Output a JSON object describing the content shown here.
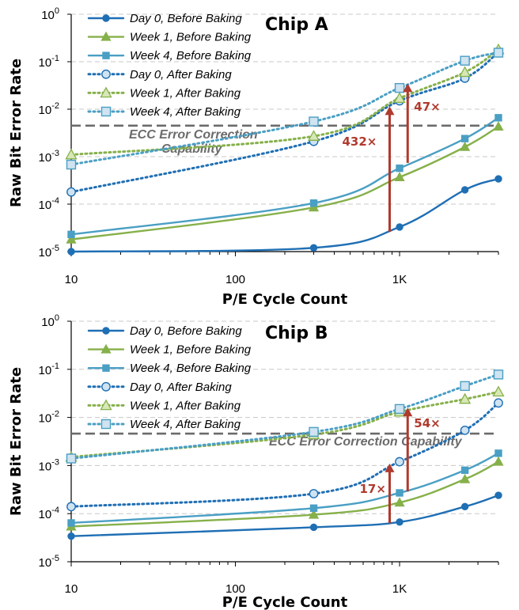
{
  "chart_data": [
    {
      "type": "line",
      "title": "Chip A",
      "xlabel": "P/E Cycle Count",
      "ylabel": "Raw Bit Error Rate",
      "xscale": "log",
      "yscale": "log",
      "xlim": [
        10,
        4000
      ],
      "ylim": [
        1e-05,
        1
      ],
      "x_ticks": [
        {
          "v": 10,
          "label": "10"
        },
        {
          "v": 100,
          "label": "100"
        },
        {
          "v": 1000,
          "label": "1K"
        }
      ],
      "y_ticks": [
        {
          "v": 1e-05,
          "base": "10",
          "exp": "-5"
        },
        {
          "v": 0.0001,
          "base": "10",
          "exp": "-4"
        },
        {
          "v": 0.001,
          "base": "10",
          "exp": "-3"
        },
        {
          "v": 0.01,
          "base": "10",
          "exp": "-2"
        },
        {
          "v": 0.1,
          "base": "10",
          "exp": "-1"
        },
        {
          "v": 1,
          "base": "10",
          "exp": "0"
        }
      ],
      "grid": "horizontal dashed",
      "legend_position": "top-left",
      "series": [
        {
          "name": "Day 0, Before Baking",
          "style": "solid",
          "marker": "circle",
          "color": "#1f6fb4",
          "x": [
            10,
            300,
            1000,
            2500,
            4000
          ],
          "y": [
            1e-05,
            1.2e-05,
            3.3e-05,
            0.0002,
            0.00034
          ]
        },
        {
          "name": "Week 1, Before Baking",
          "style": "solid",
          "marker": "triangle",
          "color": "#86b04a",
          "x": [
            10,
            300,
            1000,
            2500,
            4000
          ],
          "y": [
            1.8e-05,
            8.5e-05,
            0.00037,
            0.0016,
            0.0043
          ]
        },
        {
          "name": "Week 4, Before Baking",
          "style": "solid",
          "marker": "square",
          "color": "#4a9fc4",
          "x": [
            10,
            300,
            1000,
            2500,
            4000
          ],
          "y": [
            2.3e-05,
            0.000105,
            0.00057,
            0.0024,
            0.0066
          ]
        },
        {
          "name": "Day 0, After Baking",
          "style": "dotted",
          "marker": "circle",
          "color": "#1f6fb4",
          "x": [
            10,
            300,
            1000,
            2500,
            4000
          ],
          "y": [
            0.00018,
            0.0021,
            0.015,
            0.045,
            0.16
          ]
        },
        {
          "name": "Week 1, After Baking",
          "style": "dotted",
          "marker": "triangle",
          "color": "#86b04a",
          "x": [
            10,
            300,
            1000,
            2500,
            4000
          ],
          "y": [
            0.0011,
            0.0027,
            0.017,
            0.06,
            0.18
          ]
        },
        {
          "name": "Week 4, After Baking",
          "style": "dotted",
          "marker": "square",
          "color": "#4a9fc4",
          "x": [
            10,
            300,
            1000,
            2500,
            4000
          ],
          "y": [
            0.00068,
            0.0055,
            0.028,
            0.105,
            0.155
          ]
        }
      ],
      "threshold": {
        "y": 0.0045,
        "label_lines": [
          "ECC Error Correction",
          "Capability"
        ],
        "color": "#6b6b6b"
      },
      "arrows": [
        {
          "label": "432×",
          "x": 870,
          "y_from": 2.6e-05,
          "y_to": 0.0115,
          "label_side": "left"
        },
        {
          "label": "47×",
          "x": 1120,
          "y_from": 0.00074,
          "y_to": 0.035,
          "label_side": "right"
        }
      ]
    },
    {
      "type": "line",
      "title": "Chip B",
      "xlabel": "P/E Cycle Count",
      "ylabel": "Raw Bit Error Rate",
      "xscale": "log",
      "yscale": "log",
      "xlim": [
        10,
        4000
      ],
      "ylim": [
        1e-05,
        1
      ],
      "x_ticks": [
        {
          "v": 10,
          "label": "10"
        },
        {
          "v": 100,
          "label": "100"
        },
        {
          "v": 1000,
          "label": "1K"
        }
      ],
      "y_ticks": [
        {
          "v": 1e-05,
          "base": "10",
          "exp": "-5"
        },
        {
          "v": 0.0001,
          "base": "10",
          "exp": "-4"
        },
        {
          "v": 0.001,
          "base": "10",
          "exp": "-3"
        },
        {
          "v": 0.01,
          "base": "10",
          "exp": "-2"
        },
        {
          "v": 0.1,
          "base": "10",
          "exp": "-1"
        },
        {
          "v": 1,
          "base": "10",
          "exp": "0"
        }
      ],
      "grid": "horizontal dashed",
      "legend_position": "top-left",
      "series": [
        {
          "name": "Day 0, Before Baking",
          "style": "solid",
          "marker": "circle",
          "color": "#1f6fb4",
          "x": [
            10,
            300,
            1000,
            2500,
            4000
          ],
          "y": [
            3.4e-05,
            5.2e-05,
            6.7e-05,
            0.00014,
            0.00024
          ]
        },
        {
          "name": "Week 1, Before Baking",
          "style": "solid",
          "marker": "triangle",
          "color": "#86b04a",
          "x": [
            10,
            300,
            1000,
            2500,
            4000
          ],
          "y": [
            5.4e-05,
            9.5e-05,
            0.00017,
            0.00052,
            0.0012
          ]
        },
        {
          "name": "Week 4, Before Baking",
          "style": "solid",
          "marker": "square",
          "color": "#4a9fc4",
          "x": [
            10,
            300,
            1000,
            2500,
            4000
          ],
          "y": [
            6.4e-05,
            0.00013,
            0.00027,
            0.0008,
            0.0018
          ]
        },
        {
          "name": "Day 0, After Baking",
          "style": "dotted",
          "marker": "circle",
          "color": "#1f6fb4",
          "x": [
            10,
            300,
            1000,
            2500,
            4000
          ],
          "y": [
            0.00014,
            0.00026,
            0.0012,
            0.0054,
            0.02
          ]
        },
        {
          "name": "Week 1, After Baking",
          "style": "dotted",
          "marker": "triangle",
          "color": "#86b04a",
          "x": [
            10,
            300,
            1000,
            2500,
            4000
          ],
          "y": [
            0.0015,
            0.0044,
            0.013,
            0.024,
            0.034
          ]
        },
        {
          "name": "Week 4, After Baking",
          "style": "dotted",
          "marker": "square",
          "color": "#4a9fc4",
          "x": [
            10,
            300,
            1000,
            2500,
            4000
          ],
          "y": [
            0.0014,
            0.005,
            0.015,
            0.045,
            0.078
          ]
        }
      ],
      "threshold": {
        "y": 0.0046,
        "label_lines": [
          "ECC Error Correction Capability"
        ],
        "color": "#6b6b6b"
      },
      "arrows": [
        {
          "label": "17×",
          "x": 870,
          "y_from": 6.3e-05,
          "y_to": 0.0011,
          "label_side": "left"
        },
        {
          "label": "54×",
          "x": 1120,
          "y_from": 0.00029,
          "y_to": 0.016,
          "label_side": "right"
        }
      ]
    }
  ]
}
